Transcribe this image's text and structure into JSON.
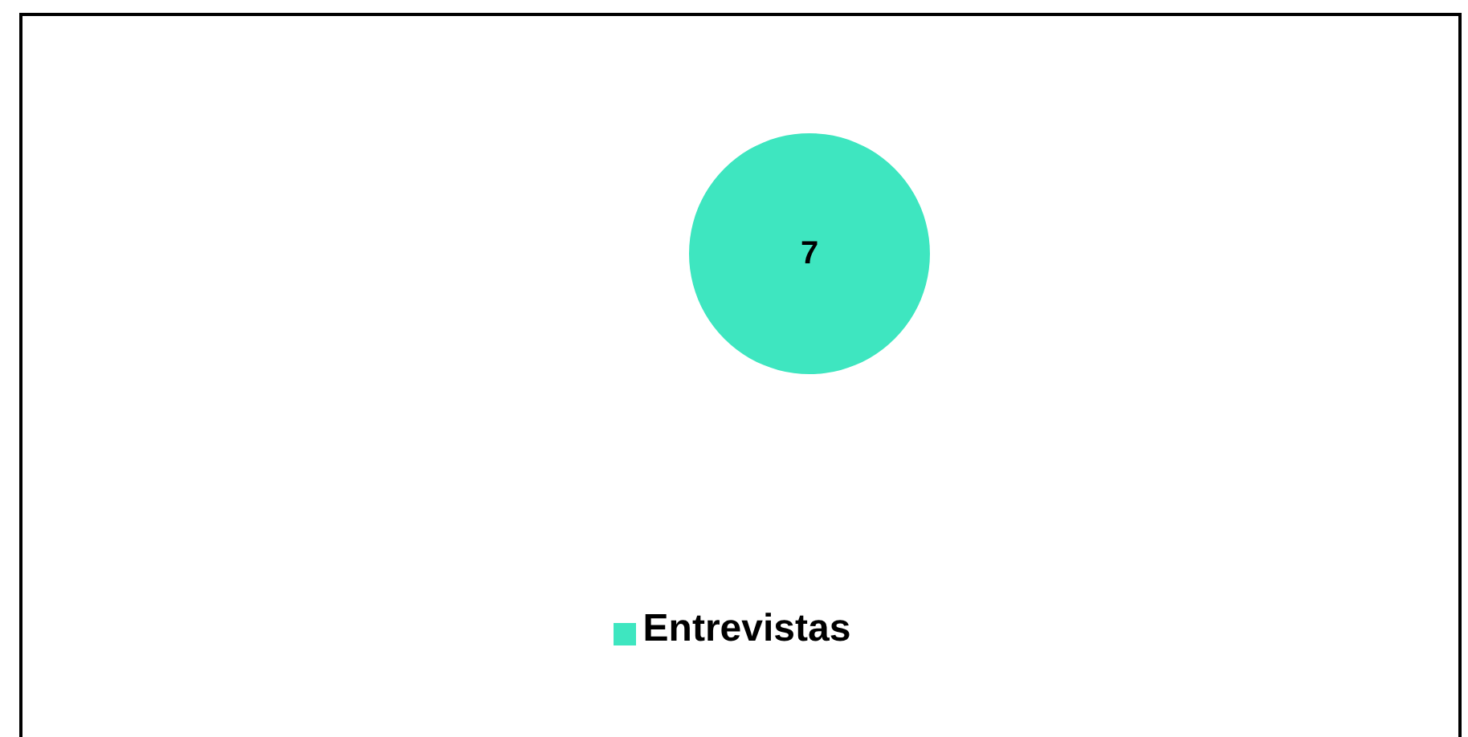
{
  "chart_data": {
    "type": "pie",
    "categories": [
      "Entrevistas"
    ],
    "values": [
      7
    ],
    "colors": [
      "#3ee6c0"
    ],
    "data_labels": true,
    "legend": "bottom"
  }
}
